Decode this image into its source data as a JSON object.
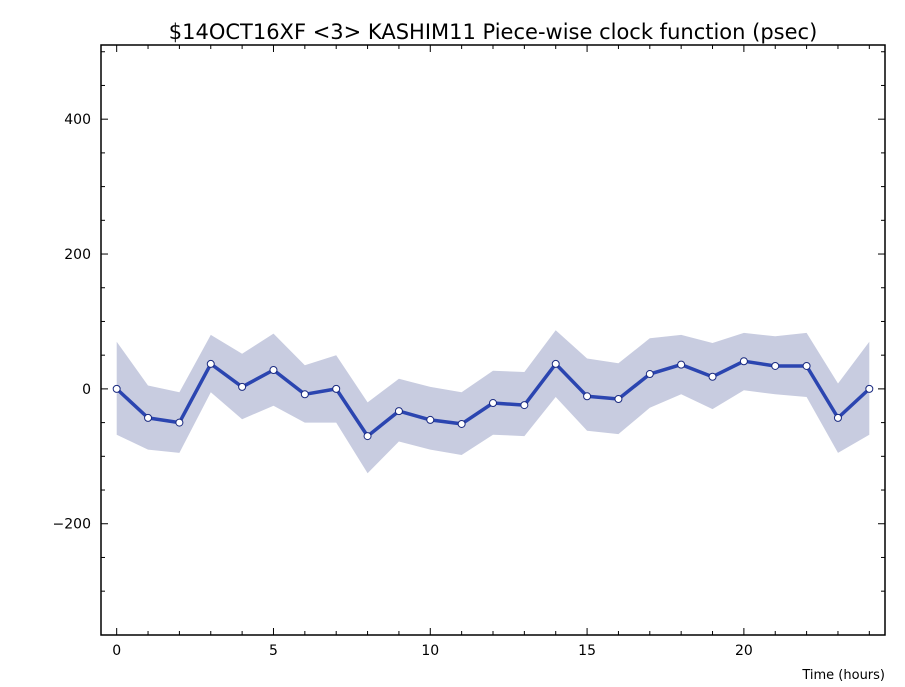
{
  "chart_data": {
    "type": "line",
    "title": "$14OCT16XF <3>  KASHIM11  Piece-wise clock function (psec)",
    "xlabel": "Time (hours)",
    "ylabel": "",
    "xlim": [
      -0.5,
      24.5
    ],
    "ylim": [
      -365,
      510
    ],
    "x_ticks": [
      "0",
      "5",
      "10",
      "15",
      "20"
    ],
    "y_ticks": [
      "−200",
      "0",
      "200",
      "400"
    ],
    "x_tick_values": [
      0,
      5,
      10,
      15,
      20
    ],
    "y_tick_values": [
      -200,
      0,
      200,
      400
    ],
    "grid": false,
    "legend": "none",
    "colors": {
      "line": "#2b45b0",
      "band": "#c8cce0",
      "marker_fill": "#ffffff"
    },
    "series": [
      {
        "x": [
          0,
          1,
          2,
          3,
          4,
          5,
          6,
          7,
          8,
          9,
          10,
          11,
          12,
          13,
          14,
          15,
          16,
          17,
          18,
          19,
          20,
          21,
          22,
          23,
          24
        ],
        "values": [
          0,
          -43,
          -50,
          37,
          3,
          28,
          -8,
          0,
          -70,
          -33,
          -46,
          -52,
          -21,
          -24,
          37,
          -11,
          -15,
          22,
          36,
          18,
          41,
          34,
          34,
          -43,
          0
        ],
        "upper": [
          70,
          5,
          -5,
          80,
          52,
          82,
          35,
          50,
          -20,
          15,
          3,
          -5,
          27,
          25,
          87,
          45,
          38,
          75,
          80,
          68,
          83,
          78,
          83,
          8,
          70
        ],
        "lower": [
          -68,
          -90,
          -95,
          -5,
          -45,
          -25,
          -50,
          -50,
          -125,
          -78,
          -90,
          -98,
          -68,
          -70,
          -12,
          -62,
          -67,
          -28,
          -8,
          -30,
          -2,
          -8,
          -12,
          -95,
          -68
        ]
      }
    ]
  }
}
